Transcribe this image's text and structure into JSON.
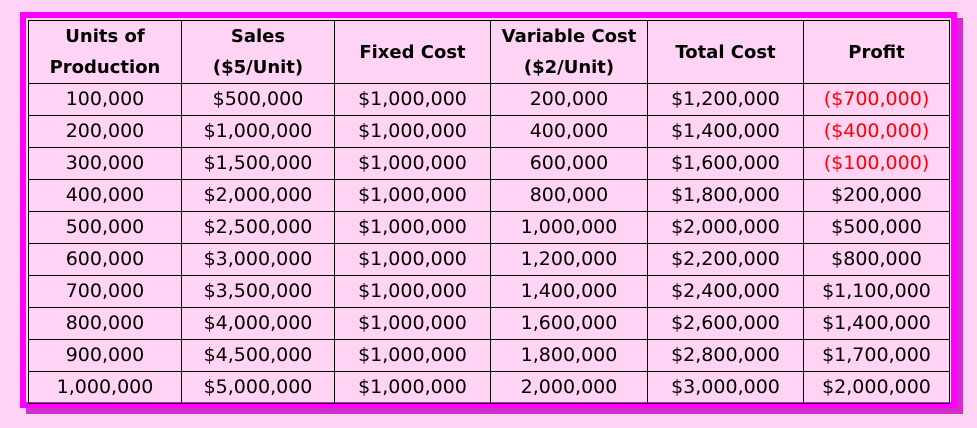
{
  "columns": [
    {
      "line1": "Units of",
      "line2": "Production"
    },
    {
      "line1": "Sales",
      "line2": "($5/Unit)"
    },
    {
      "line1": "Fixed Cost",
      "line2": ""
    },
    {
      "line1": "Variable Cost",
      "line2": "($2/Unit)"
    },
    {
      "line1": "Total Cost",
      "line2": ""
    },
    {
      "line1": "Profit",
      "line2": ""
    }
  ],
  "rows": [
    [
      "100,000",
      "$500,000",
      "$1,000,000",
      "200,000",
      "$1,200,000",
      "($700,000)"
    ],
    [
      "200,000",
      "$1,000,000",
      "$1,000,000",
      "400,000",
      "$1,400,000",
      "($400,000)"
    ],
    [
      "300,000",
      "$1,500,000",
      "$1,000,000",
      "600,000",
      "$1,600,000",
      "($100,000)"
    ],
    [
      "400,000",
      "$2,000,000",
      "$1,000,000",
      "800,000",
      "$1,800,000",
      "$200,000"
    ],
    [
      "500,000",
      "$2,500,000",
      "$1,000,000",
      "1,000,000",
      "$2,000,000",
      "$500,000"
    ],
    [
      "600,000",
      "$3,000,000",
      "$1,000,000",
      "1,200,000",
      "$2,200,000",
      "$800,000"
    ],
    [
      "700,000",
      "$3,500,000",
      "$1,000,000",
      "1,400,000",
      "$2,400,000",
      "$1,100,000"
    ],
    [
      "800,000",
      "$4,000,000",
      "$1,000,000",
      "1,600,000",
      "$2,600,000",
      "$1,400,000"
    ],
    [
      "900,000",
      "$4,500,000",
      "$1,000,000",
      "1,800,000",
      "$2,800,000",
      "$1,700,000"
    ],
    [
      "1,000,000",
      "$5,000,000",
      "$1,000,000",
      "2,000,000",
      "$3,000,000",
      "$2,000,000"
    ]
  ],
  "colors": {
    "background": "#ffd3f3",
    "frame": "#ff00ff",
    "negative": "#ff0000"
  }
}
